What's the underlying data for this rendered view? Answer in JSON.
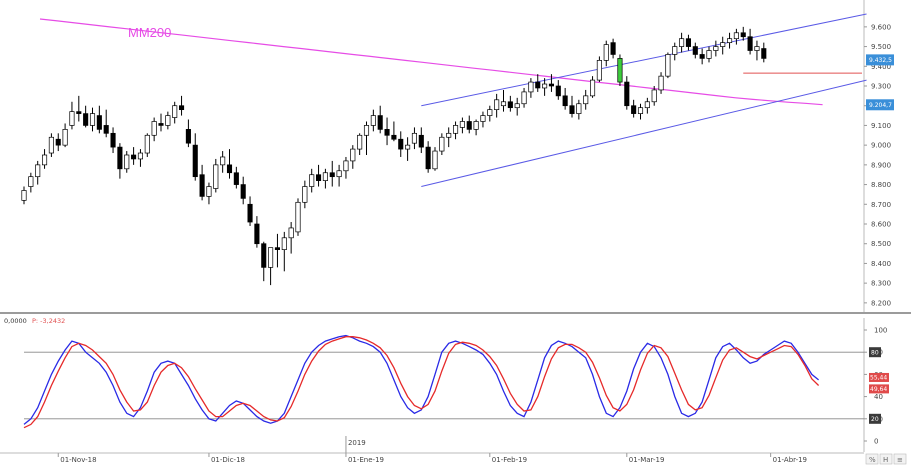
{
  "chart_data": [
    {
      "type": "candlestick",
      "ma_label": "MM200",
      "ylim": [
        8250,
        9650
      ],
      "y_ticks": [
        "9.600",
        "9.500",
        "9.400",
        "9.300",
        "9.200",
        "9.100",
        "9.000",
        "8.900",
        "8.800",
        "8.700",
        "8.600",
        "8.500",
        "8.400",
        "8.300",
        "8.200"
      ],
      "price_tags": [
        {
          "label": "9.432,5",
          "value": 9432.5,
          "color": "#3a8fd9"
        },
        {
          "label": "9.204,7",
          "value": 9204.7,
          "color": "#3a8fd9"
        }
      ],
      "horizontal_line": {
        "value": 9365,
        "color": "#e05050"
      },
      "channel_color": "#5a5ae6",
      "ma_color": "#e64ce6",
      "x_labels": [
        {
          "label": "01-Nov-18",
          "index": 5
        },
        {
          "label": "01-Dic-18",
          "index": 27
        },
        {
          "label": "01-Ene-19",
          "index": 47
        },
        {
          "label": "01-Feb-19",
          "index": 68
        },
        {
          "label": "01-Mar-19",
          "index": 88
        },
        {
          "label": "01-Abr-19",
          "index": 109
        }
      ],
      "year_marker": {
        "label": "2019",
        "index": 47
      },
      "ohlc": [
        [
          8720,
          8790,
          8700,
          8770
        ],
        [
          8790,
          8860,
          8760,
          8840
        ],
        [
          8840,
          8920,
          8800,
          8900
        ],
        [
          8900,
          8980,
          8880,
          8950
        ],
        [
          8960,
          9060,
          8940,
          9040
        ],
        [
          9030,
          9060,
          8970,
          9000
        ],
        [
          9000,
          9110,
          8990,
          9080
        ],
        [
          9100,
          9220,
          9080,
          9170
        ],
        [
          9170,
          9250,
          9120,
          9160
        ],
        [
          9160,
          9200,
          9090,
          9100
        ],
        [
          9100,
          9190,
          9070,
          9160
        ],
        [
          9150,
          9200,
          9060,
          9080
        ],
        [
          9100,
          9180,
          9040,
          9060
        ],
        [
          9060,
          9090,
          8960,
          8990
        ],
        [
          8990,
          9010,
          8830,
          8880
        ],
        [
          8880,
          8970,
          8860,
          8950
        ],
        [
          8950,
          8990,
          8900,
          8930
        ],
        [
          8930,
          8980,
          8890,
          8960
        ],
        [
          8960,
          9060,
          8940,
          9050
        ],
        [
          9050,
          9140,
          9020,
          9120
        ],
        [
          9110,
          9160,
          9070,
          9100
        ],
        [
          9100,
          9170,
          9080,
          9150
        ],
        [
          9140,
          9220,
          9110,
          9200
        ],
        [
          9200,
          9250,
          9150,
          9180
        ],
        [
          9080,
          9130,
          8990,
          9010
        ],
        [
          9000,
          9060,
          8820,
          8840
        ],
        [
          8850,
          8900,
          8720,
          8740
        ],
        [
          8740,
          8810,
          8700,
          8790
        ],
        [
          8780,
          8930,
          8760,
          8900
        ],
        [
          8900,
          8970,
          8860,
          8940
        ],
        [
          8900,
          8980,
          8830,
          8860
        ],
        [
          8860,
          8890,
          8780,
          8800
        ],
        [
          8800,
          8840,
          8700,
          8730
        ],
        [
          8700,
          8740,
          8590,
          8610
        ],
        [
          8600,
          8640,
          8480,
          8500
        ],
        [
          8500,
          8510,
          8310,
          8380
        ],
        [
          8380,
          8470,
          8290,
          8480
        ],
        [
          8480,
          8550,
          8380,
          8470
        ],
        [
          8470,
          8560,
          8360,
          8530
        ],
        [
          8530,
          8610,
          8450,
          8580
        ],
        [
          8560,
          8730,
          8540,
          8710
        ],
        [
          8710,
          8820,
          8680,
          8790
        ],
        [
          8790,
          8880,
          8760,
          8850
        ],
        [
          8850,
          8900,
          8790,
          8820
        ],
        [
          8820,
          8880,
          8780,
          8860
        ],
        [
          8860,
          8920,
          8790,
          8840
        ],
        [
          8840,
          8900,
          8790,
          8870
        ],
        [
          8870,
          8940,
          8830,
          8920
        ],
        [
          8920,
          9000,
          8880,
          8980
        ],
        [
          8980,
          9060,
          8950,
          9050
        ],
        [
          9050,
          9120,
          8950,
          9100
        ],
        [
          9100,
          9180,
          9070,
          9150
        ],
        [
          9150,
          9200,
          9060,
          9080
        ],
        [
          9080,
          9140,
          9000,
          9050
        ],
        [
          9050,
          9120,
          9020,
          9030
        ],
        [
          9030,
          9070,
          8940,
          8980
        ],
        [
          8980,
          9040,
          8920,
          9000
        ],
        [
          9010,
          9090,
          8980,
          9060
        ],
        [
          9050,
          9090,
          8960,
          8990
        ],
        [
          8990,
          9020,
          8860,
          8880
        ],
        [
          8880,
          8990,
          8870,
          8970
        ],
        [
          8970,
          9060,
          8950,
          9040
        ],
        [
          9040,
          9090,
          8990,
          9060
        ],
        [
          9060,
          9120,
          9030,
          9100
        ],
        [
          9090,
          9140,
          9060,
          9120
        ],
        [
          9120,
          9150,
          9060,
          9080
        ],
        [
          9080,
          9130,
          9050,
          9120
        ],
        [
          9120,
          9170,
          9090,
          9150
        ],
        [
          9150,
          9200,
          9120,
          9180
        ],
        [
          9180,
          9260,
          9140,
          9230
        ],
        [
          9200,
          9280,
          9170,
          9220
        ],
        [
          9220,
          9250,
          9170,
          9190
        ],
        [
          9190,
          9240,
          9150,
          9210
        ],
        [
          9210,
          9290,
          9190,
          9270
        ],
        [
          9270,
          9340,
          9240,
          9320
        ],
        [
          9320,
          9360,
          9270,
          9290
        ],
        [
          9290,
          9340,
          9250,
          9310
        ],
        [
          9310,
          9360,
          9270,
          9300
        ],
        [
          9300,
          9330,
          9230,
          9250
        ],
        [
          9250,
          9290,
          9180,
          9200
        ],
        [
          9200,
          9250,
          9140,
          9160
        ],
        [
          9160,
          9230,
          9130,
          9210
        ],
        [
          9210,
          9280,
          9180,
          9250
        ],
        [
          9250,
          9350,
          9240,
          9330
        ],
        [
          9330,
          9450,
          9320,
          9430
        ],
        [
          9430,
          9530,
          9400,
          9510
        ],
        [
          9520,
          9540,
          9440,
          9460
        ],
        [
          9440,
          9460,
          9300,
          9320
        ],
        [
          9320,
          9350,
          9180,
          9200
        ],
        [
          9200,
          9230,
          9140,
          9160
        ],
        [
          9160,
          9210,
          9130,
          9190
        ],
        [
          9190,
          9240,
          9160,
          9220
        ],
        [
          9220,
          9300,
          9200,
          9280
        ],
        [
          9280,
          9370,
          9260,
          9350
        ],
        [
          9350,
          9470,
          9340,
          9460
        ],
        [
          9460,
          9520,
          9430,
          9500
        ],
        [
          9500,
          9570,
          9470,
          9540
        ],
        [
          9540,
          9560,
          9480,
          9500
        ],
        [
          9500,
          9520,
          9440,
          9460
        ],
        [
          9460,
          9490,
          9410,
          9440
        ],
        [
          9440,
          9500,
          9420,
          9480
        ],
        [
          9480,
          9530,
          9450,
          9500
        ],
        [
          9500,
          9550,
          9460,
          9520
        ],
        [
          9520,
          9570,
          9490,
          9540
        ],
        [
          9540,
          9590,
          9510,
          9570
        ],
        [
          9570,
          9600,
          9530,
          9550
        ],
        [
          9550,
          9590,
          9460,
          9480
        ],
        [
          9480,
          9530,
          9430,
          9500
        ],
        [
          9490,
          9520,
          9420,
          9440
        ]
      ],
      "ma200": [
        9640,
        9630,
        9620,
        9610,
        9600,
        9590,
        9580,
        9570,
        9560,
        9550,
        9540,
        9530,
        9520,
        9510,
        9500,
        9490,
        9480,
        9470,
        9460,
        9450,
        9440,
        9430,
        9420,
        9410,
        9400,
        9390,
        9380,
        9370,
        9360,
        9350,
        9340,
        9330,
        9320,
        9310,
        9300,
        9290,
        9280,
        9270,
        9260,
        9250,
        9240,
        9232,
        9225,
        9218,
        9212,
        9205
      ],
      "ma_last_index": 116
    },
    {
      "type": "line",
      "header": "0,0000",
      "header_flag": "P: -3,2432",
      "ylim": [
        0,
        100
      ],
      "y_ticks": [
        100,
        80,
        60,
        40,
        20,
        0
      ],
      "ref_lines": [
        80,
        20
      ],
      "ref_tags": [
        "80",
        "20"
      ],
      "value_tags": [
        {
          "label": "55,44",
          "value": 55.44
        },
        {
          "label": "49,64",
          "value": 49.64
        }
      ],
      "series": [
        {
          "color": "#2a2ae6",
          "values": [
            15,
            20,
            30,
            45,
            60,
            72,
            82,
            90,
            88,
            80,
            75,
            70,
            62,
            50,
            35,
            25,
            22,
            30,
            45,
            62,
            70,
            72,
            70,
            60,
            50,
            38,
            28,
            20,
            18,
            25,
            32,
            36,
            34,
            28,
            22,
            18,
            16,
            18,
            25,
            40,
            55,
            70,
            80,
            86,
            90,
            92,
            94,
            95,
            93,
            90,
            88,
            85,
            80,
            70,
            55,
            40,
            30,
            25,
            28,
            40,
            60,
            80,
            88,
            90,
            88,
            85,
            82,
            78,
            70,
            60,
            45,
            32,
            25,
            22,
            35,
            55,
            75,
            86,
            90,
            88,
            85,
            80,
            75,
            60,
            40,
            25,
            22,
            30,
            45,
            65,
            80,
            88,
            85,
            75,
            60,
            40,
            25,
            22,
            25,
            35,
            55,
            75,
            85,
            88,
            82,
            75,
            70,
            72,
            78,
            82,
            86,
            90,
            88,
            80,
            70,
            60,
            55
          ]
        },
        {
          "color": "#e62a2a",
          "values": [
            12,
            15,
            22,
            35,
            50,
            63,
            75,
            85,
            88,
            86,
            82,
            76,
            70,
            60,
            46,
            35,
            27,
            28,
            35,
            50,
            62,
            68,
            70,
            66,
            58,
            47,
            37,
            27,
            22,
            22,
            27,
            32,
            34,
            32,
            27,
            22,
            19,
            18,
            21,
            31,
            45,
            60,
            72,
            81,
            87,
            90,
            92,
            94,
            94,
            93,
            91,
            88,
            84,
            77,
            66,
            52,
            40,
            32,
            29,
            33,
            45,
            63,
            79,
            87,
            89,
            88,
            86,
            82,
            76,
            68,
            56,
            43,
            33,
            27,
            28,
            40,
            58,
            74,
            84,
            87,
            87,
            84,
            80,
            71,
            57,
            41,
            30,
            27,
            33,
            46,
            64,
            79,
            86,
            84,
            76,
            61,
            46,
            33,
            28,
            30,
            41,
            57,
            73,
            82,
            84,
            80,
            76,
            74,
            77,
            80,
            83,
            86,
            85,
            78,
            68,
            56,
            50
          ]
        }
      ],
      "x_labels": [
        {
          "label": "01-Nov-18",
          "index": 5
        },
        {
          "label": "01-Dic-18",
          "index": 27
        },
        {
          "label": "01-Ene-19",
          "index": 47
        },
        {
          "label": "01-Feb-19",
          "index": 68
        },
        {
          "label": "01-Mar-19",
          "index": 88
        },
        {
          "label": "01-Abr-19",
          "index": 109
        }
      ]
    }
  ],
  "colors": {
    "up_candle_fill": "#ffffff",
    "down_candle_fill": "#000000",
    "highlight_candle": "#3ccc3c",
    "grid_separator": "#808080",
    "ref_line": "#999999"
  },
  "corner_buttons": [
    "%",
    "H",
    "≡"
  ]
}
